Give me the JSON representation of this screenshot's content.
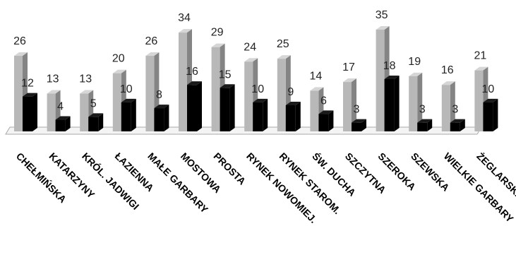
{
  "chart_data": {
    "type": "bar",
    "style": "3d-clustered-column",
    "categories": [
      "CHEŁMIŃSKA",
      "KATARZYNY",
      "KRÓL. JADWIGI",
      "ŁAZIENNA",
      "MAŁE GARBARY",
      "MOSTOWA",
      "PROSTA",
      "RYNEK NOWOMIEJ.",
      "RYNEK STAROM.",
      "ŚW. DUCHA",
      "SZCZYTNA",
      "SZEROKA",
      "SZEWSKA",
      "WIELKIE GARBARY",
      "ŻEGLARSKA"
    ],
    "series": [
      {
        "values": [
          26,
          13,
          13,
          20,
          26,
          34,
          29,
          24,
          25,
          14,
          17,
          35,
          19,
          16,
          21
        ],
        "color": "#b8b8b8"
      },
      {
        "values": [
          12,
          4,
          5,
          10,
          8,
          16,
          15,
          10,
          9,
          6,
          3,
          18,
          3,
          3,
          10
        ],
        "color": "#000000"
      }
    ],
    "data_labels": true,
    "ylim": [
      0,
      35
    ],
    "grid": false,
    "legend": "none",
    "title": "",
    "xlabel": "",
    "ylabel": ""
  }
}
